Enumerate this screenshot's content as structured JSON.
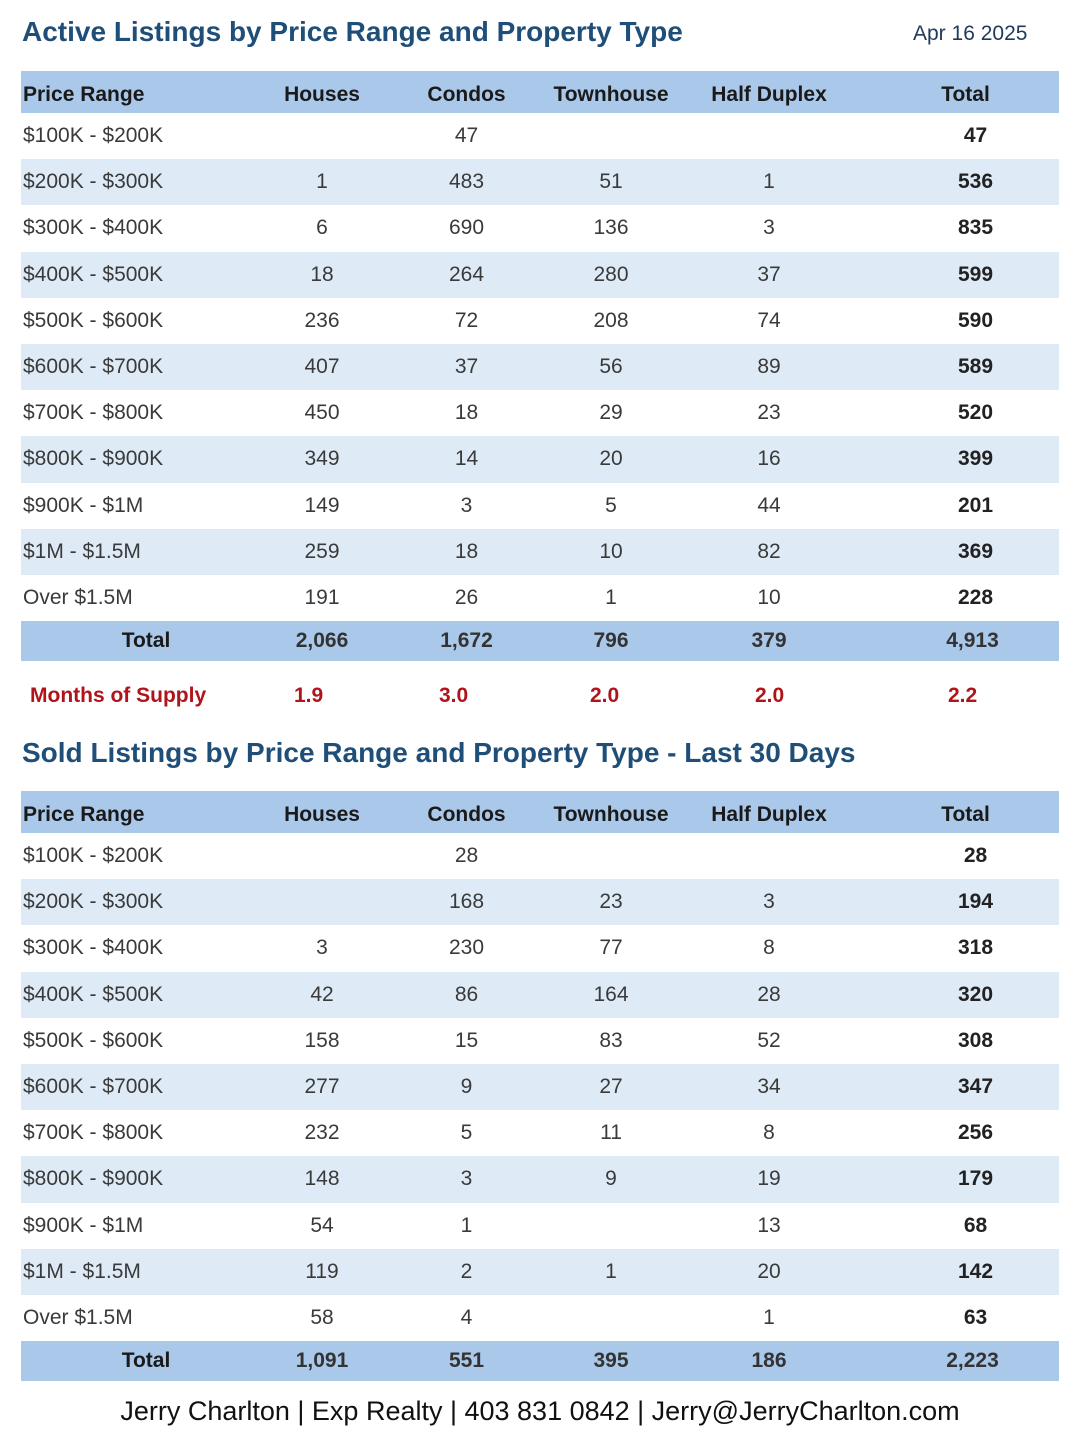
{
  "active": {
    "title": "Active Listings by Price Range and Property Type",
    "date": "Apr 16 2025",
    "headers": [
      "Price Range",
      "Houses",
      "Condos",
      "Townhouse",
      "Half Duplex",
      "Total"
    ],
    "rows": [
      [
        "$100K - $200K",
        "",
        "47",
        "",
        "",
        "47"
      ],
      [
        "$200K - $300K",
        "1",
        "483",
        "51",
        "1",
        "536"
      ],
      [
        "$300K - $400K",
        "6",
        "690",
        "136",
        "3",
        "835"
      ],
      [
        "$400K - $500K",
        "18",
        "264",
        "280",
        "37",
        "599"
      ],
      [
        "$500K - $600K",
        "236",
        "72",
        "208",
        "74",
        "590"
      ],
      [
        "$600K - $700K",
        "407",
        "37",
        "56",
        "89",
        "589"
      ],
      [
        "$700K - $800K",
        "450",
        "18",
        "29",
        "23",
        "520"
      ],
      [
        "$800K - $900K",
        "349",
        "14",
        "20",
        "16",
        "399"
      ],
      [
        "$900K - $1M",
        "149",
        "3",
        "5",
        "44",
        "201"
      ],
      [
        "$1M - $1.5M",
        "259",
        "18",
        "10",
        "82",
        "369"
      ],
      [
        "Over $1.5M",
        "191",
        "26",
        "1",
        "10",
        "228"
      ]
    ],
    "total": [
      "Total",
      "2,066",
      "1,672",
      "796",
      "379",
      "4,913"
    ],
    "months_of_supply": {
      "label": "Months of Supply",
      "values": [
        "1.9",
        "3.0",
        "2.0",
        "2.0",
        "2.2"
      ]
    }
  },
  "sold": {
    "title": "Sold Listings by Price Range and Property Type - Last 30 Days",
    "headers": [
      "Price Range",
      "Houses",
      "Condos",
      "Townhouse",
      "Half Duplex",
      "Total"
    ],
    "rows": [
      [
        "$100K - $200K",
        "",
        "28",
        "",
        "",
        "28"
      ],
      [
        "$200K - $300K",
        "",
        "168",
        "23",
        "3",
        "194"
      ],
      [
        "$300K - $400K",
        "3",
        "230",
        "77",
        "8",
        "318"
      ],
      [
        "$400K - $500K",
        "42",
        "86",
        "164",
        "28",
        "320"
      ],
      [
        "$500K - $600K",
        "158",
        "15",
        "83",
        "52",
        "308"
      ],
      [
        "$600K - $700K",
        "277",
        "9",
        "27",
        "34",
        "347"
      ],
      [
        "$700K - $800K",
        "232",
        "5",
        "11",
        "8",
        "256"
      ],
      [
        "$800K - $900K",
        "148",
        "3",
        "9",
        "19",
        "179"
      ],
      [
        "$900K - $1M",
        "54",
        "1",
        "",
        "13",
        "68"
      ],
      [
        "$1M - $1.5M",
        "119",
        "2",
        "1",
        "20",
        "142"
      ],
      [
        "Over $1.5M",
        "58",
        "4",
        "",
        "1",
        "63"
      ]
    ],
    "total": [
      "Total",
      "1,091",
      "551",
      "395",
      "186",
      "2,223"
    ]
  },
  "footer": {
    "text": "Jerry Charlton | Exp Realty | 403 831 0842 | Jerry@JerryCharlton.com"
  }
}
